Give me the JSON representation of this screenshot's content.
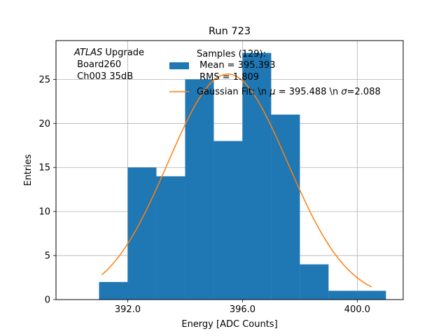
{
  "chart_data": {
    "type": "bar",
    "title": "Run 723",
    "xlabel": "Energy [ADC Counts]",
    "ylabel": "Entries",
    "xlim": [
      389.5,
      401.6
    ],
    "ylim": [
      0,
      29.4
    ],
    "x_ticks": [
      392.0,
      396.0,
      400.0
    ],
    "x_tick_labels": [
      "392.0",
      "396.0",
      "400.0"
    ],
    "y_ticks": [
      0,
      5,
      10,
      15,
      20,
      25
    ],
    "y_tick_labels": [
      "0",
      "5",
      "10",
      "15",
      "20",
      "25"
    ],
    "grid": true,
    "bin_edges": [
      391,
      392,
      393,
      394,
      395,
      396,
      397,
      398,
      399,
      400,
      401
    ],
    "counts": [
      2,
      15,
      14,
      25,
      18,
      28,
      21,
      4,
      1,
      1
    ],
    "fit": {
      "name": "Gaussian Fit",
      "mu": 395.488,
      "sigma": 2.088,
      "amplitude": 25.6,
      "x_range": [
        391.1,
        400.5
      ]
    },
    "colors": {
      "bars": "#1f77b4",
      "fit": "#ff7f0e",
      "grid": "#b0b0b0"
    },
    "annotation": {
      "experiment": "ATLAS",
      "experiment_suffix": " Upgrade",
      "board": " Board260",
      "channel": " Ch003 35dB"
    },
    "legend": {
      "position": "upper right",
      "samples_lines": [
        "Samples (129):",
        " Mean = 395.393",
        " RMS = 1.809"
      ],
      "fit_prefix": "Gaussian Fit: \\n ",
      "fit_mu_symbol": "μ",
      "fit_mu_value": " = 395.488 \\n ",
      "fit_sigma_symbol": "σ",
      "fit_sigma_value": "=2.088"
    }
  }
}
